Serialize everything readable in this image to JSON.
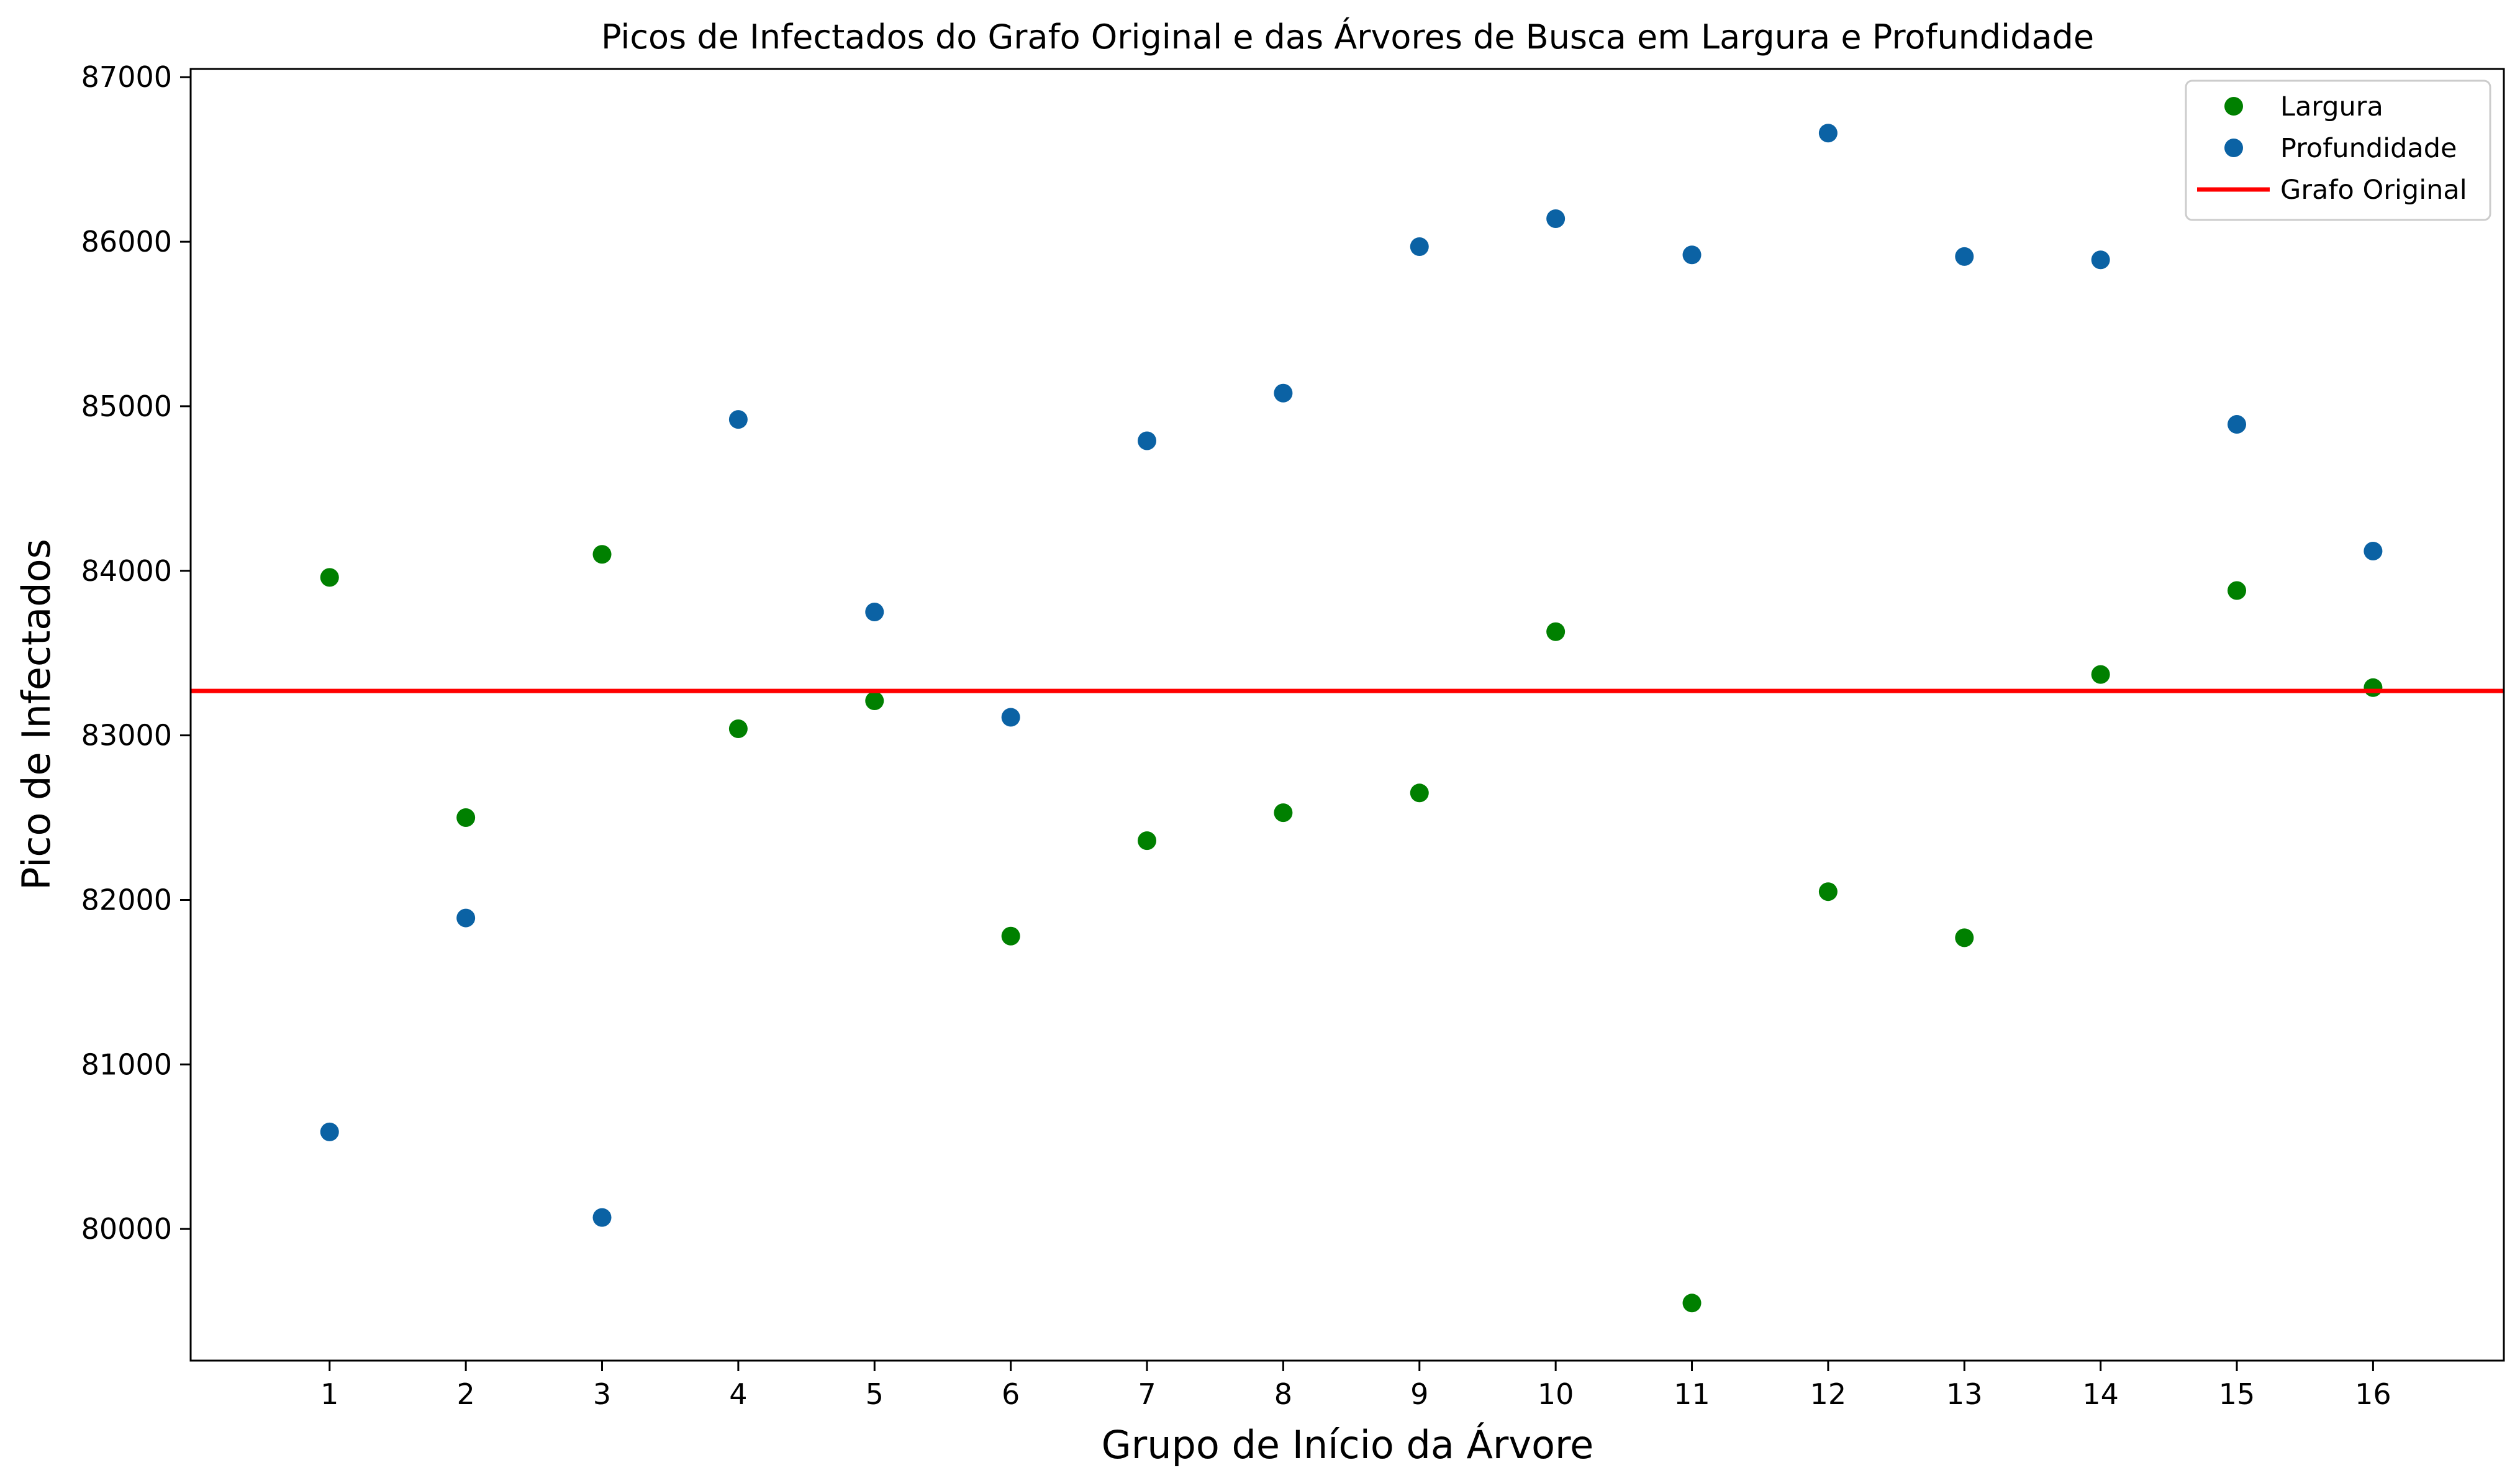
{
  "chart_data": {
    "type": "scatter",
    "title": "Picos de Infectados do Grafo Original e das Árvores de Busca em Largura e Profundidade",
    "xlabel": "Grupo de Início da Árvore",
    "ylabel": "Pico de Infectados",
    "xlim": [
      -0.02,
      16.96
    ],
    "ylim": [
      79200,
      87050
    ],
    "x_ticks": [
      1,
      2,
      3,
      4,
      5,
      6,
      7,
      8,
      9,
      10,
      11,
      12,
      13,
      14,
      15,
      16
    ],
    "y_ticks": [
      80000,
      81000,
      82000,
      83000,
      84000,
      85000,
      86000,
      87000
    ],
    "grid": false,
    "legend": {
      "placement": "top-right"
    },
    "series": [
      {
        "name": "Largura",
        "kind": "points",
        "color": "#008000",
        "x": [
          1,
          2,
          3,
          4,
          5,
          6,
          7,
          8,
          9,
          10,
          11,
          12,
          13,
          14,
          15,
          16
        ],
        "values": [
          83960,
          82500,
          84100,
          83040,
          83210,
          81780,
          82360,
          82530,
          82650,
          83630,
          79550,
          82050,
          81770,
          83370,
          83880,
          83290
        ]
      },
      {
        "name": "Profundidade",
        "kind": "points",
        "color": "#0b62a4",
        "x": [
          1,
          2,
          3,
          4,
          5,
          6,
          7,
          8,
          9,
          10,
          11,
          12,
          13,
          14,
          15,
          16
        ],
        "values": [
          80590,
          81890,
          80070,
          84920,
          83750,
          83110,
          84790,
          85080,
          85970,
          86140,
          85920,
          86660,
          85910,
          85890,
          84890,
          84120
        ]
      },
      {
        "name": "Grafo Original",
        "kind": "hline",
        "color": "#ff0000",
        "value": 83270
      }
    ]
  }
}
